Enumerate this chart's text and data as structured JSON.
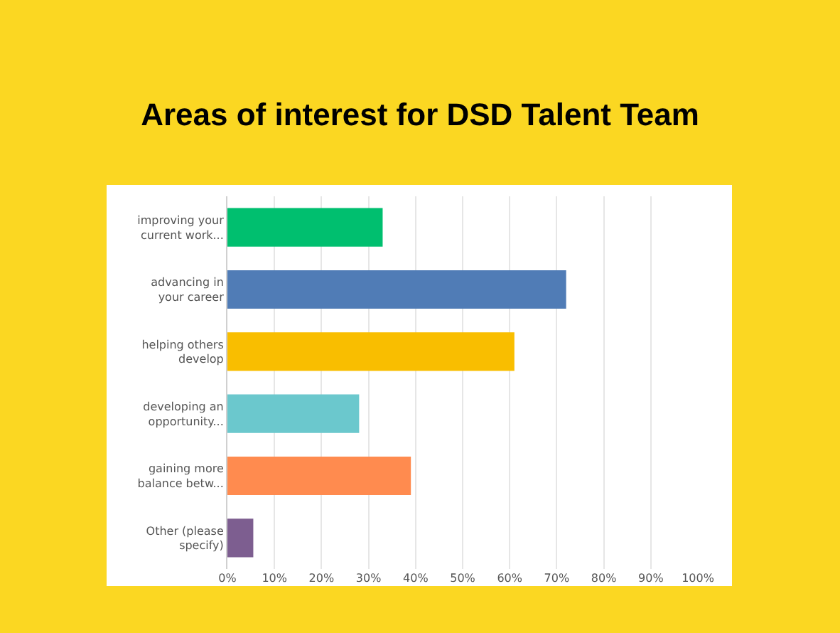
{
  "chart_data": {
    "type": "bar",
    "orientation": "horizontal",
    "title": "Areas of interest for DSD Talent Team",
    "categories": [
      "improving your current work...",
      "advancing in your career",
      "helping others develop",
      "developing an opportunity...",
      "gaining more balance betw...",
      "Other (please specify)"
    ],
    "values": [
      33,
      72,
      61,
      28,
      39,
      5.5
    ],
    "colors": [
      "#00bf6f",
      "#507cb6",
      "#f9be00",
      "#6bc8cd",
      "#ff8b4f",
      "#7d5e90"
    ],
    "xlim": [
      0,
      100
    ],
    "xticks": [
      {
        "value": 0,
        "label": "0%"
      },
      {
        "value": 10,
        "label": "10%"
      },
      {
        "value": 20,
        "label": "20%"
      },
      {
        "value": 30,
        "label": "30%"
      },
      {
        "value": 40,
        "label": "40%"
      },
      {
        "value": 50,
        "label": "50%"
      },
      {
        "value": 60,
        "label": "60%"
      },
      {
        "value": 70,
        "label": "70%"
      },
      {
        "value": 80,
        "label": "80%"
      },
      {
        "value": 90,
        "label": "90%"
      },
      {
        "value": 100,
        "label": "100%"
      }
    ],
    "grid": "x"
  }
}
